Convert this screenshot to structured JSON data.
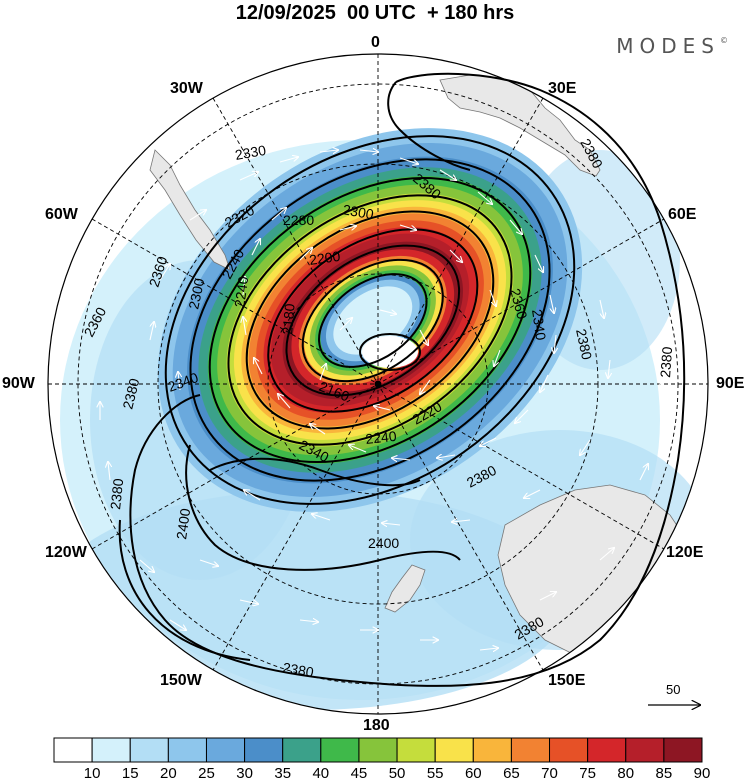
{
  "header": {
    "title": "12/09/2025  00 UTC  + 180 hrs",
    "brand": "MODES",
    "brand_mark": "©"
  },
  "map": {
    "projection": "south polar stereographic",
    "longitude_labels": {
      "top": "0",
      "top_left": "30W",
      "top_right": "30E",
      "upper_left": "60W",
      "upper_right": "60E",
      "left": "90W",
      "right": "90E",
      "lower_left": "120W",
      "lower_right": "120E",
      "bottom_left": "150W",
      "bottom_right": "150E",
      "bottom": "180"
    },
    "contour_labels": [
      "2330",
      "2380",
      "2380",
      "2320",
      "2280",
      "2300",
      "2240",
      "2360",
      "2360",
      "2340",
      "2200",
      "2300",
      "2240",
      "2180",
      "2160",
      "2360",
      "2380",
      "2220",
      "2340",
      "2240",
      "2340",
      "2380",
      "2380",
      "2380",
      "2380",
      "2400",
      "2400",
      "2380",
      "2380"
    ],
    "vector_reference": "50"
  },
  "colorbar": {
    "levels": [
      "10",
      "15",
      "20",
      "25",
      "30",
      "35",
      "40",
      "45",
      "50",
      "55",
      "60",
      "65",
      "70",
      "75",
      "80",
      "85",
      "90"
    ],
    "colors": [
      "#ffffff",
      "#d4f1fb",
      "#b3def5",
      "#8ec6ec",
      "#6aa9dd",
      "#4b8ec9",
      "#3ba18a",
      "#3fb94a",
      "#86c43b",
      "#c5dd3c",
      "#f9e24a",
      "#f9b53b",
      "#f28232",
      "#e65127",
      "#d4262a",
      "#b51f2a",
      "#8d1623"
    ]
  }
}
